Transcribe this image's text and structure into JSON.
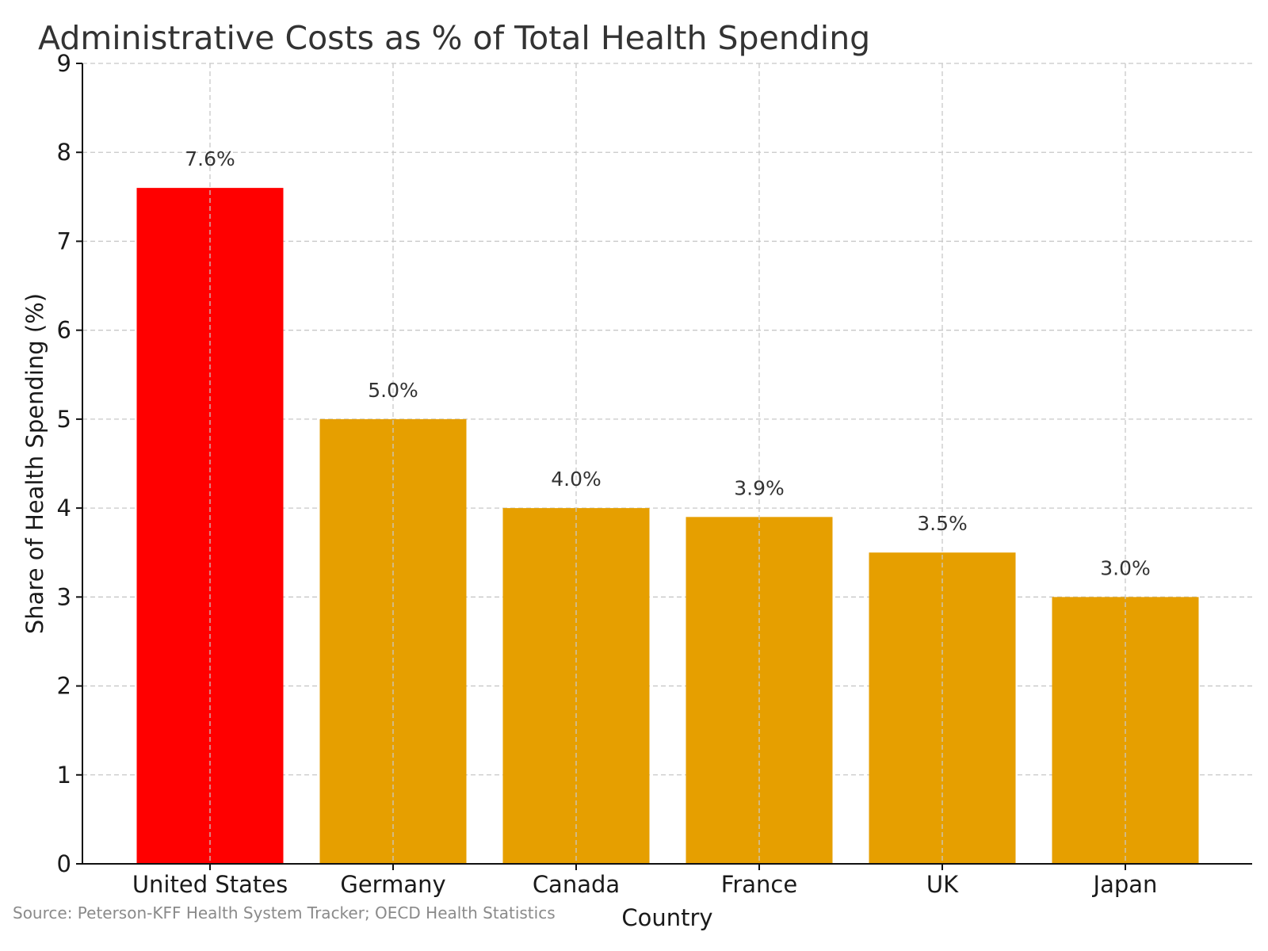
{
  "chart_data": {
    "type": "bar",
    "title": "Administrative Costs as % of Total Health Spending",
    "xlabel": "Country",
    "ylabel": "Share of Health Spending (%)",
    "categories": [
      "United States",
      "Germany",
      "Canada",
      "France",
      "UK",
      "Japan"
    ],
    "values": [
      7.6,
      5.0,
      4.0,
      3.9,
      3.5,
      3.0
    ],
    "data_labels": [
      "7.6%",
      "5.0%",
      "4.0%",
      "3.9%",
      "3.5%",
      "3.0%"
    ],
    "ylim": [
      0,
      9
    ],
    "yticks": [
      "0",
      "1",
      "2",
      "3",
      "4",
      "5",
      "6",
      "7",
      "8",
      "9"
    ],
    "grid": true,
    "colors": [
      "#ff0000",
      "#e69f00",
      "#e69f00",
      "#e69f00",
      "#e69f00",
      "#e69f00"
    ]
  },
  "source": "Source: Peterson-KFF Health System Tracker; OECD Health Statistics"
}
